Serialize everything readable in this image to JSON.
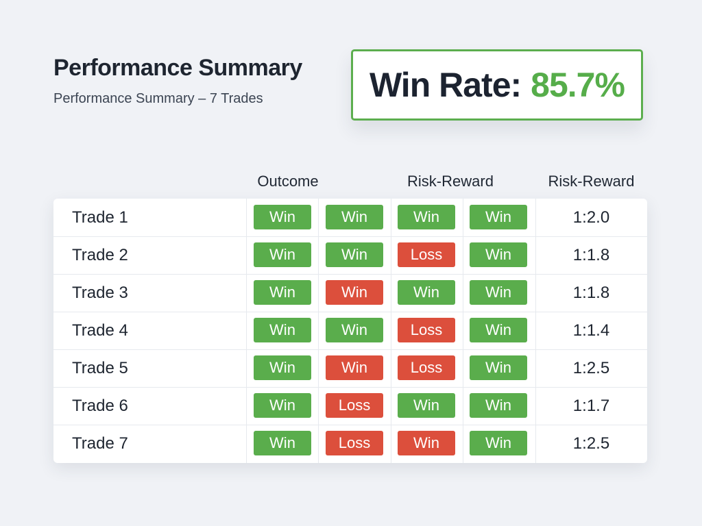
{
  "header": {
    "title": "Performance Summary",
    "subtitle": "Performance Summary – 7 Trades"
  },
  "win_rate": {
    "label": "Win Rate:",
    "value": "85.7%"
  },
  "table": {
    "column_headers": [
      "Outcome",
      "Risk-Reward",
      "Risk-Reward"
    ],
    "rows": [
      {
        "label": "Trade 1",
        "badges": [
          "Win",
          "Win",
          "Win",
          "Win"
        ],
        "badge_states": [
          "green",
          "green",
          "green",
          "green"
        ],
        "risk_reward": "1:2.0"
      },
      {
        "label": "Trade 2",
        "badges": [
          "Win",
          "Win",
          "Loss",
          "Win"
        ],
        "badge_states": [
          "green",
          "green",
          "red",
          "green"
        ],
        "risk_reward": "1:1.8"
      },
      {
        "label": "Trade 3",
        "badges": [
          "Win",
          "Win",
          "Win",
          "Win"
        ],
        "badge_states": [
          "green",
          "red",
          "green",
          "green"
        ],
        "risk_reward": "1:1.8"
      },
      {
        "label": "Trade 4",
        "badges": [
          "Win",
          "Win",
          "Loss",
          "Win"
        ],
        "badge_states": [
          "green",
          "green",
          "red",
          "green"
        ],
        "risk_reward": "1:1.4"
      },
      {
        "label": "Trade 5",
        "badges": [
          "Win",
          "Win",
          "Loss",
          "Win"
        ],
        "badge_states": [
          "green",
          "red",
          "red",
          "green"
        ],
        "risk_reward": "1:2.5"
      },
      {
        "label": "Trade 6",
        "badges": [
          "Win",
          "Loss",
          "Win",
          "Win"
        ],
        "badge_states": [
          "green",
          "red",
          "green",
          "green"
        ],
        "risk_reward": "1:1.7"
      },
      {
        "label": "Trade 7",
        "badges": [
          "Win",
          "Loss",
          "Win",
          "Win"
        ],
        "badge_states": [
          "green",
          "red",
          "red",
          "green"
        ],
        "risk_reward": "1:2.5"
      }
    ]
  },
  "colors": {
    "green": "#5aad4c",
    "red": "#dc4f3c",
    "accent": "#56ad4a",
    "background": "#f0f2f6"
  }
}
